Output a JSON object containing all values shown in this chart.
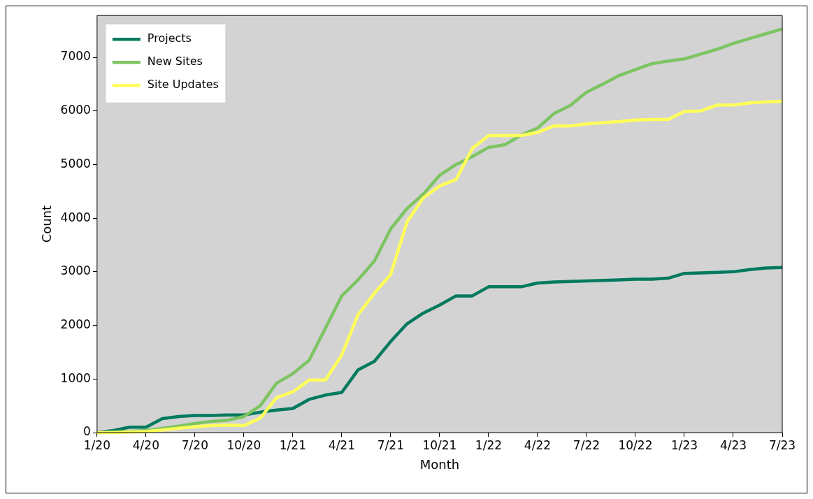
{
  "chart_data": {
    "type": "line",
    "xlabel": "Month",
    "ylabel": "Count",
    "categories": [
      "1/20",
      null,
      null,
      "4/20",
      null,
      null,
      "7/20",
      null,
      null,
      "10/20",
      null,
      null,
      "1/21",
      null,
      null,
      "4/21",
      null,
      null,
      "7/21",
      null,
      null,
      "10/21",
      null,
      null,
      "1/22",
      null,
      null,
      "4/22",
      null,
      null,
      "7/22",
      null,
      null,
      "10/22",
      null,
      null,
      "1/23",
      null,
      null,
      "4/23",
      null,
      null,
      "7/23"
    ],
    "ylim": [
      0,
      7780
    ],
    "yticks": [
      0,
      1000,
      2000,
      3000,
      4000,
      5000,
      6000,
      7000
    ],
    "legend": "top left",
    "line_style": "solid",
    "marker": "none",
    "series": [
      {
        "name": "Projects",
        "color": "#007a5e",
        "values": [
          0,
          40,
          100,
          100,
          260,
          300,
          320,
          320,
          330,
          330,
          380,
          420,
          450,
          620,
          700,
          750,
          1170,
          1330,
          1700,
          2030,
          2230,
          2380,
          2550,
          2550,
          2720,
          2720,
          2720,
          2790,
          2810,
          2820,
          2830,
          2840,
          2850,
          2860,
          2860,
          2880,
          2970,
          2980,
          2990,
          3000,
          3040,
          3070,
          3080
        ]
      },
      {
        "name": "New Sites",
        "color": "#7dc462",
        "values": [
          0,
          10,
          20,
          40,
          80,
          120,
          170,
          210,
          230,
          300,
          500,
          920,
          1100,
          1350,
          1950,
          2550,
          2850,
          3200,
          3800,
          4180,
          4450,
          4800,
          5000,
          5150,
          5320,
          5370,
          5550,
          5680,
          5950,
          6100,
          6350,
          6500,
          6660,
          6770,
          6880,
          6930,
          6970,
          7060,
          7150,
          7260,
          7350,
          7440,
          7530
        ]
      },
      {
        "name": "Site Updates",
        "color": "#ffff5a",
        "values": [
          0,
          0,
          10,
          20,
          50,
          80,
          110,
          130,
          140,
          130,
          270,
          650,
          760,
          980,
          980,
          1450,
          2200,
          2600,
          2950,
          3930,
          4380,
          4600,
          4720,
          5300,
          5540,
          5540,
          5540,
          5600,
          5720,
          5720,
          5760,
          5780,
          5800,
          5830,
          5840,
          5840,
          5990,
          6000,
          6110,
          6110,
          6150,
          6170,
          6180
        ]
      }
    ]
  }
}
